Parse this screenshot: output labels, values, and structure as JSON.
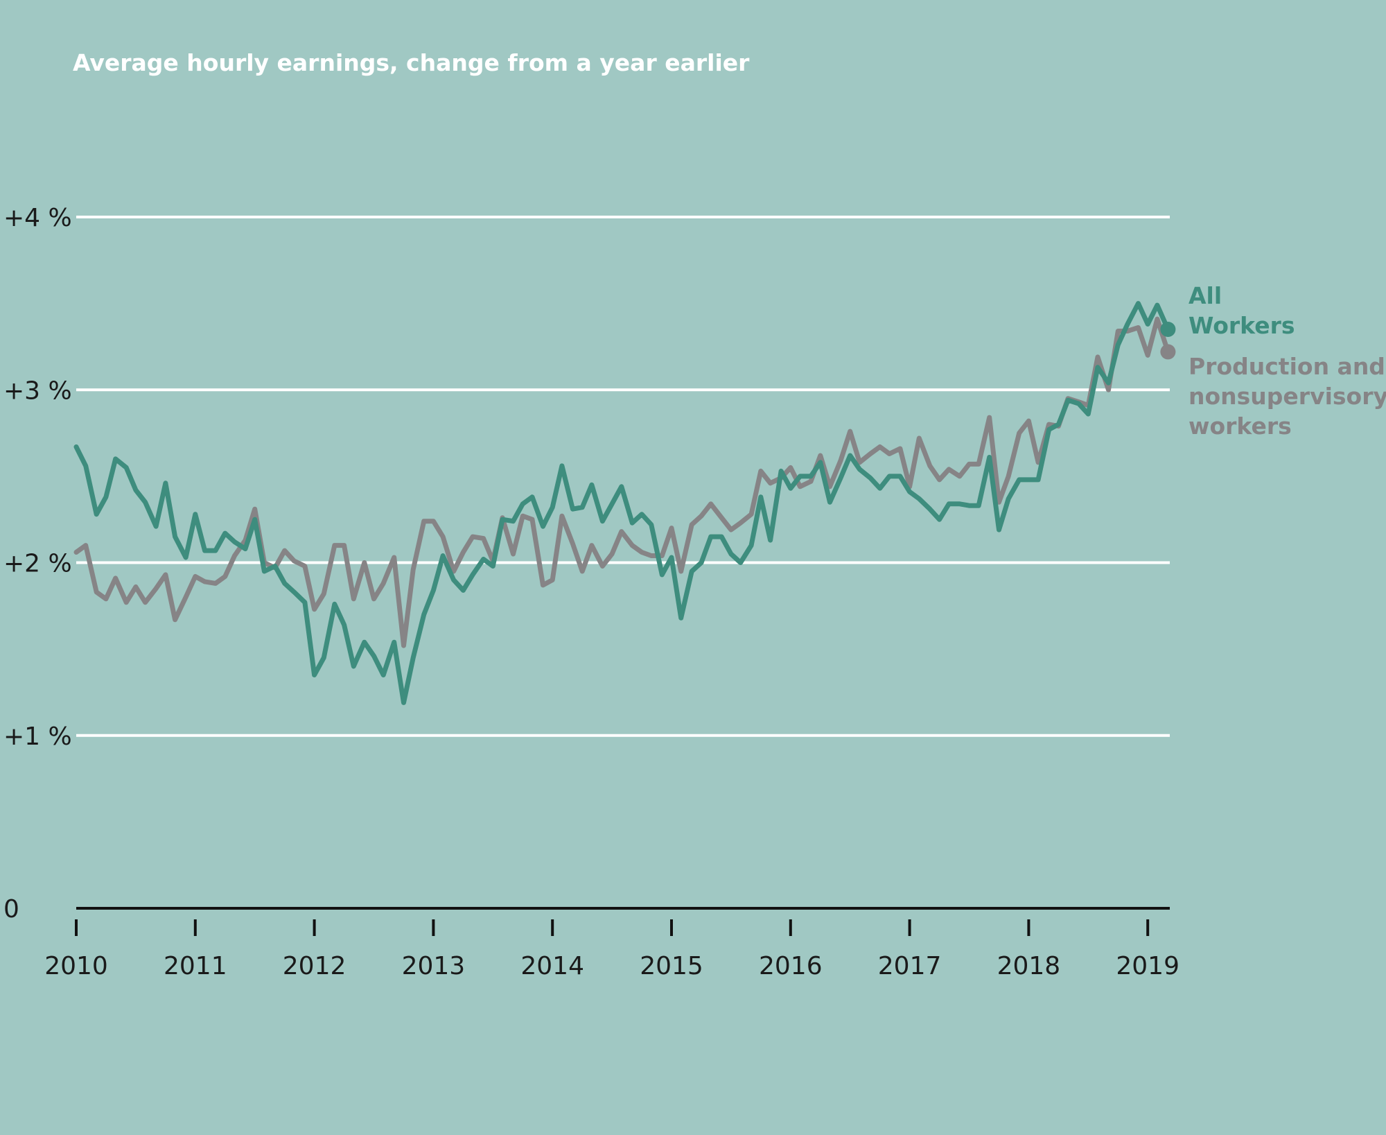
{
  "title": "Average hourly earnings, change from a year earlier",
  "colors": {
    "background": "#a0c8c3",
    "grid": "#ffffff",
    "axis": "#111111",
    "all_workers": "#3e8d7e",
    "production": "#868486"
  },
  "chart_data": {
    "type": "line",
    "title": "Average hourly earnings, change from a year earlier",
    "xlabel": "",
    "ylabel": "",
    "xlim": [
      2010,
      2019.2
    ],
    "ylim": [
      0,
      4
    ],
    "y_ticks": [
      {
        "value": 0,
        "label": "0"
      },
      {
        "value": 1,
        "label": "+1 %"
      },
      {
        "value": 2,
        "label": "+2 %"
      },
      {
        "value": 3,
        "label": "+3 %"
      },
      {
        "value": 4,
        "label": "+4 %"
      }
    ],
    "x_ticks": [
      {
        "value": 2010,
        "label": "2010"
      },
      {
        "value": 2011,
        "label": "2011"
      },
      {
        "value": 2012,
        "label": "2012"
      },
      {
        "value": 2013,
        "label": "2013"
      },
      {
        "value": 2014,
        "label": "2014"
      },
      {
        "value": 2015,
        "label": "2015"
      },
      {
        "value": 2016,
        "label": "2016"
      },
      {
        "value": 2017,
        "label": "2017"
      },
      {
        "value": 2018,
        "label": "2018"
      },
      {
        "value": 2019,
        "label": "2019"
      }
    ],
    "grid": true,
    "legend_placement": "right-end-labels",
    "series": [
      {
        "name": "All Workers",
        "label_lines": [
          "All",
          "Workers"
        ],
        "color": "#3e8d7e",
        "points": [
          [
            2010.0,
            2.67
          ],
          [
            2010.08,
            2.56
          ],
          [
            2010.17,
            2.28
          ],
          [
            2010.25,
            2.38
          ],
          [
            2010.33,
            2.6
          ],
          [
            2010.42,
            2.55
          ],
          [
            2010.5,
            2.42
          ],
          [
            2010.58,
            2.35
          ],
          [
            2010.67,
            2.21
          ],
          [
            2010.75,
            2.46
          ],
          [
            2010.83,
            2.15
          ],
          [
            2010.92,
            2.03
          ],
          [
            2011.0,
            2.28
          ],
          [
            2011.08,
            2.07
          ],
          [
            2011.17,
            2.07
          ],
          [
            2011.25,
            2.17
          ],
          [
            2011.33,
            2.12
          ],
          [
            2011.42,
            2.08
          ],
          [
            2011.5,
            2.25
          ],
          [
            2011.58,
            1.95
          ],
          [
            2011.67,
            1.98
          ],
          [
            2011.75,
            1.88
          ],
          [
            2011.83,
            1.83
          ],
          [
            2011.92,
            1.77
          ],
          [
            2012.0,
            1.35
          ],
          [
            2012.08,
            1.45
          ],
          [
            2012.17,
            1.76
          ],
          [
            2012.25,
            1.64
          ],
          [
            2012.33,
            1.4
          ],
          [
            2012.42,
            1.54
          ],
          [
            2012.5,
            1.46
          ],
          [
            2012.58,
            1.35
          ],
          [
            2012.67,
            1.54
          ],
          [
            2012.75,
            1.19
          ],
          [
            2012.83,
            1.45
          ],
          [
            2012.92,
            1.7
          ],
          [
            2013.0,
            1.84
          ],
          [
            2013.08,
            2.04
          ],
          [
            2013.17,
            1.9
          ],
          [
            2013.25,
            1.84
          ],
          [
            2013.33,
            1.93
          ],
          [
            2013.42,
            2.02
          ],
          [
            2013.5,
            1.98
          ],
          [
            2013.58,
            2.25
          ],
          [
            2013.67,
            2.24
          ],
          [
            2013.75,
            2.34
          ],
          [
            2013.83,
            2.38
          ],
          [
            2013.92,
            2.21
          ],
          [
            2014.0,
            2.32
          ],
          [
            2014.08,
            2.56
          ],
          [
            2014.17,
            2.31
          ],
          [
            2014.25,
            2.32
          ],
          [
            2014.33,
            2.45
          ],
          [
            2014.42,
            2.24
          ],
          [
            2014.5,
            2.34
          ],
          [
            2014.58,
            2.44
          ],
          [
            2014.67,
            2.23
          ],
          [
            2014.75,
            2.28
          ],
          [
            2014.83,
            2.22
          ],
          [
            2014.92,
            1.93
          ],
          [
            2015.0,
            2.03
          ],
          [
            2015.08,
            1.68
          ],
          [
            2015.17,
            1.95
          ],
          [
            2015.25,
            2.0
          ],
          [
            2015.33,
            2.15
          ],
          [
            2015.42,
            2.15
          ],
          [
            2015.5,
            2.05
          ],
          [
            2015.58,
            2.0
          ],
          [
            2015.67,
            2.1
          ],
          [
            2015.75,
            2.38
          ],
          [
            2015.83,
            2.13
          ],
          [
            2015.92,
            2.53
          ],
          [
            2016.0,
            2.43
          ],
          [
            2016.08,
            2.5
          ],
          [
            2016.17,
            2.5
          ],
          [
            2016.25,
            2.58
          ],
          [
            2016.33,
            2.35
          ],
          [
            2016.42,
            2.49
          ],
          [
            2016.5,
            2.62
          ],
          [
            2016.58,
            2.54
          ],
          [
            2016.67,
            2.49
          ],
          [
            2016.75,
            2.43
          ],
          [
            2016.83,
            2.5
          ],
          [
            2016.92,
            2.5
          ],
          [
            2017.0,
            2.41
          ],
          [
            2017.08,
            2.37
          ],
          [
            2017.17,
            2.31
          ],
          [
            2017.25,
            2.25
          ],
          [
            2017.33,
            2.34
          ],
          [
            2017.42,
            2.34
          ],
          [
            2017.5,
            2.33
          ],
          [
            2017.58,
            2.33
          ],
          [
            2017.67,
            2.61
          ],
          [
            2017.75,
            2.19
          ],
          [
            2017.83,
            2.37
          ],
          [
            2017.92,
            2.48
          ],
          [
            2018.0,
            2.48
          ],
          [
            2018.08,
            2.48
          ],
          [
            2018.17,
            2.77
          ],
          [
            2018.25,
            2.8
          ],
          [
            2018.33,
            2.94
          ],
          [
            2018.42,
            2.92
          ],
          [
            2018.5,
            2.86
          ],
          [
            2018.58,
            3.13
          ],
          [
            2018.67,
            3.04
          ],
          [
            2018.75,
            3.26
          ],
          [
            2018.83,
            3.38
          ],
          [
            2018.92,
            3.5
          ],
          [
            2019.0,
            3.38
          ],
          [
            2019.08,
            3.49
          ],
          [
            2019.17,
            3.35
          ]
        ]
      },
      {
        "name": "Production and nonsupervisory workers",
        "label_lines": [
          "Production and",
          "nonsupervisory",
          "workers"
        ],
        "color": "#868486",
        "points": [
          [
            2010.0,
            2.06
          ],
          [
            2010.08,
            2.1
          ],
          [
            2010.17,
            1.83
          ],
          [
            2010.25,
            1.79
          ],
          [
            2010.33,
            1.91
          ],
          [
            2010.42,
            1.77
          ],
          [
            2010.5,
            1.86
          ],
          [
            2010.58,
            1.77
          ],
          [
            2010.67,
            1.85
          ],
          [
            2010.75,
            1.93
          ],
          [
            2010.83,
            1.67
          ],
          [
            2010.92,
            1.8
          ],
          [
            2011.0,
            1.92
          ],
          [
            2011.08,
            1.89
          ],
          [
            2011.17,
            1.88
          ],
          [
            2011.25,
            1.92
          ],
          [
            2011.33,
            2.04
          ],
          [
            2011.42,
            2.13
          ],
          [
            2011.5,
            2.31
          ],
          [
            2011.58,
            2.0
          ],
          [
            2011.67,
            1.97
          ],
          [
            2011.75,
            2.07
          ],
          [
            2011.83,
            2.01
          ],
          [
            2011.92,
            1.98
          ],
          [
            2012.0,
            1.73
          ],
          [
            2012.08,
            1.82
          ],
          [
            2012.17,
            2.1
          ],
          [
            2012.25,
            2.1
          ],
          [
            2012.33,
            1.79
          ],
          [
            2012.42,
            2.0
          ],
          [
            2012.5,
            1.79
          ],
          [
            2012.58,
            1.88
          ],
          [
            2012.67,
            2.03
          ],
          [
            2012.75,
            1.52
          ],
          [
            2012.83,
            1.96
          ],
          [
            2012.92,
            2.24
          ],
          [
            2013.0,
            2.24
          ],
          [
            2013.08,
            2.15
          ],
          [
            2013.17,
            1.95
          ],
          [
            2013.25,
            2.06
          ],
          [
            2013.33,
            2.15
          ],
          [
            2013.42,
            2.14
          ],
          [
            2013.5,
            2.01
          ],
          [
            2013.58,
            2.26
          ],
          [
            2013.67,
            2.05
          ],
          [
            2013.75,
            2.27
          ],
          [
            2013.83,
            2.25
          ],
          [
            2013.92,
            1.87
          ],
          [
            2014.0,
            1.9
          ],
          [
            2014.08,
            2.27
          ],
          [
            2014.17,
            2.11
          ],
          [
            2014.25,
            1.95
          ],
          [
            2014.33,
            2.1
          ],
          [
            2014.42,
            1.98
          ],
          [
            2014.5,
            2.05
          ],
          [
            2014.58,
            2.18
          ],
          [
            2014.67,
            2.1
          ],
          [
            2014.75,
            2.06
          ],
          [
            2014.83,
            2.04
          ],
          [
            2014.92,
            2.04
          ],
          [
            2015.0,
            2.2
          ],
          [
            2015.08,
            1.95
          ],
          [
            2015.17,
            2.22
          ],
          [
            2015.25,
            2.27
          ],
          [
            2015.33,
            2.34
          ],
          [
            2015.42,
            2.26
          ],
          [
            2015.5,
            2.19
          ],
          [
            2015.58,
            2.23
          ],
          [
            2015.67,
            2.28
          ],
          [
            2015.75,
            2.53
          ],
          [
            2015.83,
            2.46
          ],
          [
            2015.92,
            2.49
          ],
          [
            2016.0,
            2.55
          ],
          [
            2016.08,
            2.44
          ],
          [
            2016.17,
            2.47
          ],
          [
            2016.25,
            2.62
          ],
          [
            2016.33,
            2.44
          ],
          [
            2016.42,
            2.59
          ],
          [
            2016.5,
            2.76
          ],
          [
            2016.58,
            2.58
          ],
          [
            2016.67,
            2.63
          ],
          [
            2016.75,
            2.67
          ],
          [
            2016.83,
            2.63
          ],
          [
            2016.92,
            2.66
          ],
          [
            2017.0,
            2.44
          ],
          [
            2017.08,
            2.72
          ],
          [
            2017.17,
            2.56
          ],
          [
            2017.25,
            2.48
          ],
          [
            2017.33,
            2.54
          ],
          [
            2017.42,
            2.5
          ],
          [
            2017.5,
            2.57
          ],
          [
            2017.58,
            2.57
          ],
          [
            2017.67,
            2.84
          ],
          [
            2017.75,
            2.35
          ],
          [
            2017.83,
            2.5
          ],
          [
            2017.92,
            2.75
          ],
          [
            2018.0,
            2.82
          ],
          [
            2018.08,
            2.58
          ],
          [
            2018.17,
            2.8
          ],
          [
            2018.25,
            2.79
          ],
          [
            2018.33,
            2.95
          ],
          [
            2018.42,
            2.93
          ],
          [
            2018.5,
            2.91
          ],
          [
            2018.58,
            3.19
          ],
          [
            2018.67,
            3.0
          ],
          [
            2018.75,
            3.34
          ],
          [
            2018.83,
            3.34
          ],
          [
            2018.92,
            3.36
          ],
          [
            2019.0,
            3.2
          ],
          [
            2019.08,
            3.41
          ],
          [
            2019.17,
            3.22
          ]
        ]
      }
    ]
  }
}
